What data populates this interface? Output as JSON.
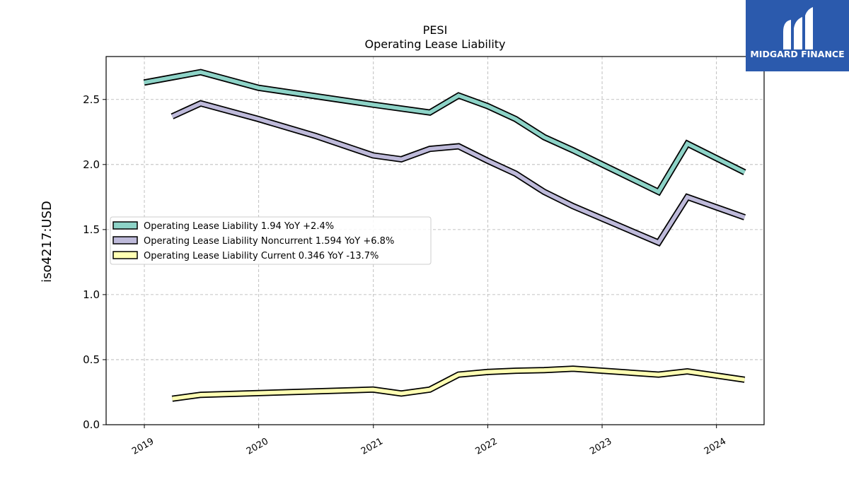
{
  "chart_data": {
    "type": "line",
    "title": "PESI",
    "subtitle": "Operating Lease Liability",
    "ylabel": "iso4217:USD",
    "xlabel": "",
    "xlim": [
      "2018-09-01",
      "2024-06-01"
    ],
    "ylim": [
      0,
      2.83
    ],
    "y_ticks": [
      0.0,
      0.5,
      1.0,
      1.5,
      2.0,
      2.5
    ],
    "y_tick_labels": [
      "0.0",
      "0.5",
      "1.0",
      "1.5",
      "2.0",
      "2.5"
    ],
    "x_ticks": [
      "2019-01-01",
      "2020-01-01",
      "2021-01-01",
      "2022-01-01",
      "2023-01-01",
      "2024-01-01"
    ],
    "x_tick_labels": [
      "2019",
      "2020",
      "2021",
      "2022",
      "2023",
      "2024"
    ],
    "grid": true,
    "legend_position": "center-left",
    "series": [
      {
        "name": "Operating Lease Liability  1.94 YoY +2.4%",
        "color": "#8dd3c7",
        "points": [
          {
            "x": "2018-12-31",
            "y": 2.63
          },
          {
            "x": "2019-06-30",
            "y": 2.71
          },
          {
            "x": "2019-12-31",
            "y": 2.59
          },
          {
            "x": "2020-12-31",
            "y": 2.46
          },
          {
            "x": "2021-06-30",
            "y": 2.4
          },
          {
            "x": "2021-09-30",
            "y": 2.53
          },
          {
            "x": "2021-12-31",
            "y": 2.45
          },
          {
            "x": "2022-03-31",
            "y": 2.35
          },
          {
            "x": "2022-06-30",
            "y": 2.21
          },
          {
            "x": "2022-09-30",
            "y": 2.11
          },
          {
            "x": "2023-06-30",
            "y": 1.79
          },
          {
            "x": "2023-09-30",
            "y": 2.16
          },
          {
            "x": "2024-03-31",
            "y": 1.94
          }
        ]
      },
      {
        "name": "Operating Lease Liability Noncurrent  1.594 YoY +6.8%",
        "color": "#bebada",
        "points": [
          {
            "x": "2019-03-31",
            "y": 2.37
          },
          {
            "x": "2019-06-30",
            "y": 2.47
          },
          {
            "x": "2019-12-31",
            "y": 2.35
          },
          {
            "x": "2020-06-30",
            "y": 2.22
          },
          {
            "x": "2020-12-31",
            "y": 2.07
          },
          {
            "x": "2021-03-31",
            "y": 2.04
          },
          {
            "x": "2021-06-30",
            "y": 2.12
          },
          {
            "x": "2021-09-30",
            "y": 2.14
          },
          {
            "x": "2021-12-31",
            "y": 2.03
          },
          {
            "x": "2022-03-31",
            "y": 1.93
          },
          {
            "x": "2022-06-30",
            "y": 1.79
          },
          {
            "x": "2022-09-30",
            "y": 1.68
          },
          {
            "x": "2023-06-30",
            "y": 1.4
          },
          {
            "x": "2023-09-30",
            "y": 1.75
          },
          {
            "x": "2024-03-31",
            "y": 1.594
          }
        ]
      },
      {
        "name": "Operating Lease Liability Current  0.346 YoY -13.7%",
        "color": "#ffffb3",
        "points": [
          {
            "x": "2019-03-31",
            "y": 0.2
          },
          {
            "x": "2019-06-30",
            "y": 0.23
          },
          {
            "x": "2020-12-31",
            "y": 0.27
          },
          {
            "x": "2021-03-31",
            "y": 0.24
          },
          {
            "x": "2021-06-30",
            "y": 0.27
          },
          {
            "x": "2021-09-30",
            "y": 0.385
          },
          {
            "x": "2021-12-31",
            "y": 0.405
          },
          {
            "x": "2022-03-31",
            "y": 0.415
          },
          {
            "x": "2022-06-30",
            "y": 0.42
          },
          {
            "x": "2022-09-30",
            "y": 0.43
          },
          {
            "x": "2023-06-30",
            "y": 0.385
          },
          {
            "x": "2023-09-30",
            "y": 0.41
          },
          {
            "x": "2024-03-31",
            "y": 0.346
          }
        ]
      }
    ]
  },
  "logo": {
    "text": "MIDGARD FINANCE",
    "background": "#2b5aad",
    "foreground": "#ffffff"
  }
}
